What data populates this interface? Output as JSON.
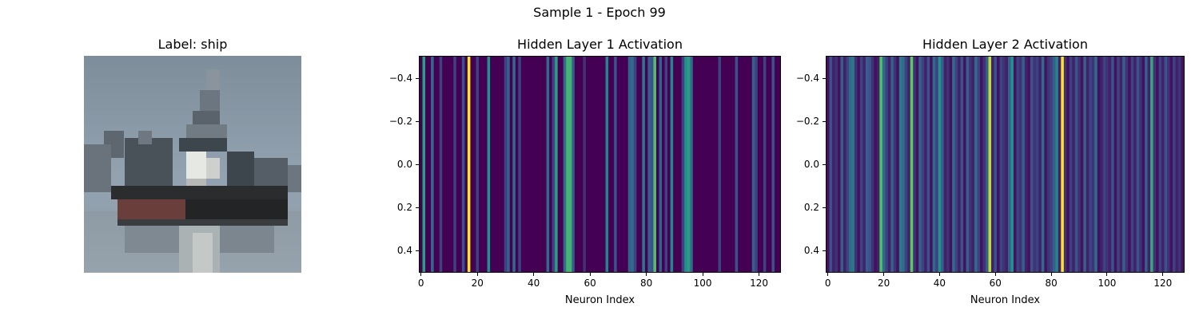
{
  "figure": {
    "suptitle": "Sample 1 - Epoch 99"
  },
  "chart_data": [
    {
      "type": "image",
      "title": "Label: ship",
      "axes": "off"
    },
    {
      "type": "heatmap",
      "title": "Hidden Layer 1 Activation",
      "xlabel": "Neuron Index",
      "xlim": [
        -0.5,
        127.5
      ],
      "ylim": [
        0.5,
        -0.5
      ],
      "xticks": [
        "0",
        "20",
        "40",
        "60",
        "80",
        "100",
        "120"
      ],
      "yticks": [
        "−0.4",
        "−0.2",
        "0.0",
        "0.2",
        "0.4"
      ],
      "colormap": "viridis",
      "values": [
        0.0,
        0.55,
        0.0,
        0.0,
        0.35,
        0.0,
        0.0,
        0.2,
        0.0,
        0.0,
        0.0,
        0.0,
        0.2,
        0.0,
        0.0,
        0.25,
        0.0,
        1.0,
        0.0,
        0.0,
        0.2,
        0.0,
        0.0,
        0.0,
        0.5,
        0.0,
        0.0,
        0.0,
        0.0,
        0.0,
        0.2,
        0.3,
        0.0,
        0.35,
        0.0,
        0.2,
        0.0,
        0.0,
        0.0,
        0.0,
        0.0,
        0.0,
        0.0,
        0.0,
        0.0,
        0.35,
        0.0,
        0.2,
        0.55,
        0.0,
        0.0,
        0.35,
        0.65,
        0.65,
        0.3,
        0.0,
        0.0,
        0.0,
        0.15,
        0.0,
        0.0,
        0.0,
        0.0,
        0.0,
        0.0,
        0.0,
        0.45,
        0.0,
        0.0,
        0.25,
        0.0,
        0.0,
        0.0,
        0.0,
        0.3,
        0.35,
        0.2,
        0.0,
        0.0,
        0.4,
        0.0,
        0.3,
        0.25,
        0.7,
        0.0,
        0.3,
        0.0,
        0.2,
        0.0,
        0.45,
        0.0,
        0.0,
        0.0,
        0.2,
        0.5,
        0.55,
        0.35,
        0.0,
        0.0,
        0.0,
        0.0,
        0.0,
        0.0,
        0.0,
        0.0,
        0.0,
        0.2,
        0.0,
        0.0,
        0.0,
        0.0,
        0.0,
        0.25,
        0.0,
        0.0,
        0.0,
        0.0,
        0.0,
        0.3,
        0.2,
        0.0,
        0.0,
        0.2,
        0.0,
        0.0,
        0.25,
        0.0,
        0.0
      ]
    },
    {
      "type": "heatmap",
      "title": "Hidden Layer 2 Activation",
      "xlabel": "Neuron Index",
      "xlim": [
        -0.5,
        127.5
      ],
      "ylim": [
        0.5,
        -0.5
      ],
      "xticks": [
        "0",
        "20",
        "40",
        "60",
        "80",
        "100",
        "120"
      ],
      "yticks": [
        "−0.4",
        "−0.2",
        "0.0",
        "0.2",
        "0.4"
      ],
      "colormap": "viridis",
      "values": [
        0.05,
        0.25,
        0.1,
        0.15,
        0.05,
        0.3,
        0.1,
        0.2,
        0.35,
        0.4,
        0.15,
        0.05,
        0.2,
        0.1,
        0.3,
        0.25,
        0.15,
        0.05,
        0.1,
        0.7,
        0.35,
        0.2,
        0.1,
        0.3,
        0.15,
        0.05,
        0.4,
        0.35,
        0.2,
        0.1,
        0.75,
        0.15,
        0.05,
        0.3,
        0.2,
        0.1,
        0.25,
        0.05,
        0.35,
        0.2,
        0.5,
        0.3,
        0.1,
        0.15,
        0.05,
        0.35,
        0.2,
        0.1,
        0.25,
        0.05,
        0.3,
        0.15,
        0.1,
        0.35,
        0.2,
        0.05,
        0.15,
        0.3,
        0.9,
        0.1,
        0.25,
        0.05,
        0.2,
        0.15,
        0.1,
        0.3,
        0.5,
        0.05,
        0.2,
        0.15,
        0.3,
        0.1,
        0.05,
        0.25,
        0.15,
        0.2,
        0.1,
        0.35,
        0.05,
        0.15,
        0.2,
        0.3,
        0.45,
        0.1,
        1.0,
        0.15,
        0.05,
        0.2,
        0.1,
        0.25,
        0.15,
        0.05,
        0.3,
        0.1,
        0.2,
        0.15,
        0.35,
        0.05,
        0.1,
        0.2,
        0.15,
        0.1,
        0.25,
        0.05,
        0.2,
        0.1,
        0.3,
        0.15,
        0.05,
        0.2,
        0.1,
        0.25,
        0.15,
        0.05,
        0.3,
        0.1,
        0.6,
        0.15,
        0.05,
        0.2,
        0.1,
        0.25,
        0.15,
        0.05,
        0.2,
        0.1,
        0.15,
        0.05
      ]
    }
  ]
}
